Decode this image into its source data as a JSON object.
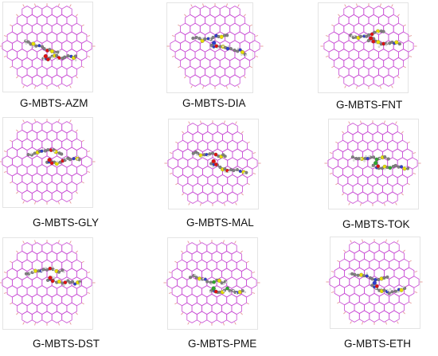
{
  "colors": {
    "graphene_bond": "#c84bd4",
    "graphene_edge_h": "#e08a8a",
    "carbon": "#808080",
    "hydrogen": "#e6e6e6",
    "sulfur": "#e8e000",
    "nitrogen": "#2e3ccc",
    "oxygen": "#e01010",
    "chlorine": "#2ea82e",
    "bond": "#7a7a7a"
  },
  "icons": [
    "graphene-sheet-icon",
    "molecule-structure-icon"
  ],
  "panels": [
    {
      "label": "G-MBTS-AZM",
      "extra": "oxygen"
    },
    {
      "label": "G-MBTS-DIA",
      "extra": "nitrogen"
    },
    {
      "label": "G-MBTS-FNT",
      "extra": "oxygen"
    },
    {
      "label": "G-MBTS-GLY",
      "extra": "oxygen"
    },
    {
      "label": "G-MBTS-MAL",
      "extra": "oxygen"
    },
    {
      "label": "G-MBTS-TOK",
      "extra": "chlorine"
    },
    {
      "label": "G-MBTS-DST",
      "extra": "oxygen"
    },
    {
      "label": "G-MBTS-PME",
      "extra": "chlorine"
    },
    {
      "label": "G-MBTS-ETH",
      "extra": "nitrogen"
    }
  ]
}
